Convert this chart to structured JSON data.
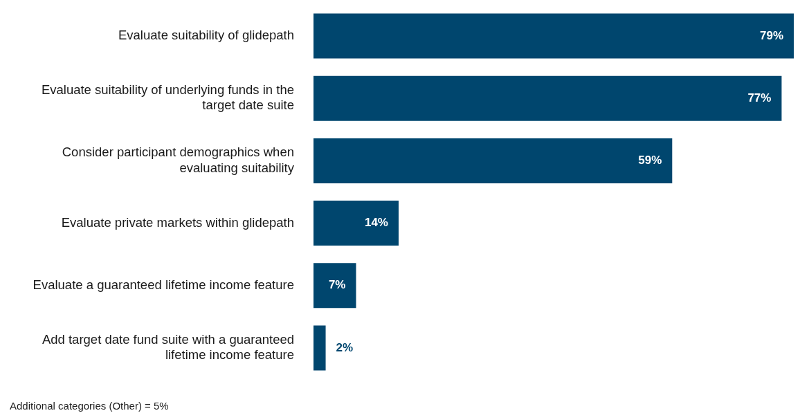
{
  "chart_data": {
    "type": "bar",
    "orientation": "horizontal",
    "categories": [
      "Evaluate suitability of glidepath",
      "Evaluate suitability of underlying funds in the target date suite",
      "Consider participant demographics when evaluating suitability",
      "Evaluate private markets within glidepath",
      "Evaluate a guaranteed lifetime income feature",
      "Add target date fund suite with a guaranteed lifetime income feature"
    ],
    "values": [
      79,
      77,
      59,
      14,
      7,
      2
    ],
    "value_labels": [
      "79%",
      "77%",
      "59%",
      "14%",
      "7%",
      "2%"
    ],
    "color": "#00466e",
    "legend": false,
    "annotations": [
      "Additional categories (Other) = 5%"
    ]
  }
}
